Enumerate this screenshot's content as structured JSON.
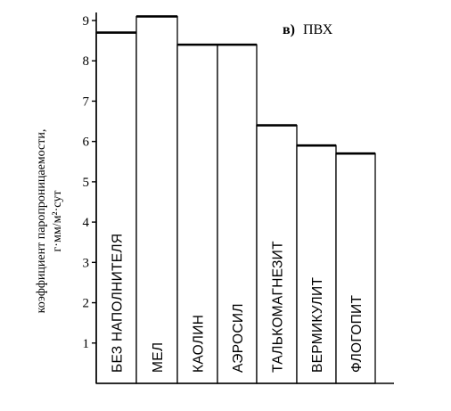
{
  "chart_data": {
    "type": "bar",
    "title_letter": "в)",
    "title": "ПВХ",
    "ylabel_line1": "коэффициент паропроницаемости,",
    "ylabel_line2": "г·мм/м²·сут",
    "xlabel": "",
    "ylim": [
      0,
      9
    ],
    "yticks": [
      "1",
      "2",
      "3",
      "4",
      "5",
      "6",
      "7",
      "8",
      "9"
    ],
    "categories": [
      "БЕЗ НАПОЛНИТЕЛЯ",
      "МЕЛ",
      "КАОЛИН",
      "АЭРОСИЛ",
      "ТАЛЬКОМАГНЕЗИТ",
      "ВЕРМИКУЛИТ",
      "ФЛОГОПИТ"
    ],
    "values": [
      8.7,
      9.1,
      8.4,
      8.4,
      6.4,
      5.9,
      5.7
    ],
    "grid": false,
    "legend": "none"
  }
}
